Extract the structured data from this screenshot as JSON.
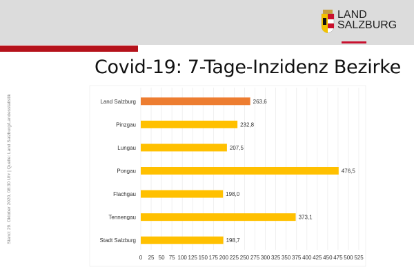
{
  "header": {
    "logo_text_line1": "LAND",
    "logo_text_line2": "SALZBURG"
  },
  "title": "Covid-19: 7-Tage-Inzidenz Bezirke",
  "source_note": "Stand: 29. Oktober 2020, 08:30 Uhr  |  Quelle: Land Salzburg/Landesstatistik",
  "colors": {
    "header_bg": "#dcdcdc",
    "accent_red": "#b5121b",
    "highlight_bar": "#ed7d31",
    "bar": "#ffc000"
  },
  "chart_data": {
    "type": "bar",
    "orientation": "horizontal",
    "categories": [
      "Land Salzburg",
      "Pinzgau",
      "Lungau",
      "Pongau",
      "Flachgau",
      "Tennengau",
      "Stadt Salzburg"
    ],
    "values": [
      263.6,
      232.8,
      207.5,
      476.5,
      198.0,
      373.1,
      198.7
    ],
    "value_labels": [
      "263,6",
      "232,8",
      "207,5",
      "476,5",
      "198,0",
      "373,1",
      "198,7"
    ],
    "highlight": "Land Salzburg",
    "xlim": [
      0,
      525
    ],
    "xticks": [
      0,
      25,
      50,
      75,
      100,
      125,
      150,
      175,
      200,
      225,
      250,
      275,
      300,
      325,
      350,
      375,
      400,
      425,
      450,
      475,
      500,
      525
    ],
    "grid": "vertical",
    "legend": "none"
  }
}
